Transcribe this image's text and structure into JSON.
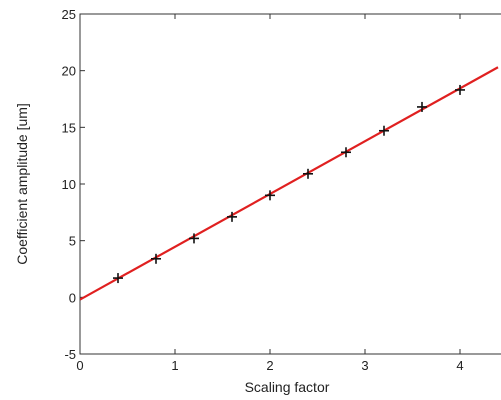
{
  "chart_data": {
    "type": "scatter",
    "title": "",
    "xlabel": "Scaling factor",
    "ylabel": "Coefficient amplitude [um]",
    "xlim": [
      0,
      4.4
    ],
    "ylim": [
      -5,
      25
    ],
    "xticks": [
      0,
      1,
      2,
      3,
      4
    ],
    "yticks": [
      -5,
      0,
      5,
      10,
      15,
      20,
      25
    ],
    "xtick_labels": [
      "0",
      "1",
      "2",
      "3",
      "4"
    ],
    "ytick_labels": [
      "-5",
      "0",
      "5",
      "10",
      "15",
      "20",
      "25"
    ],
    "grid": false,
    "legend": "none",
    "series": [
      {
        "kind": "scatter",
        "marker": "+",
        "color": "#111111",
        "x": [
          0.4,
          0.8,
          1.2,
          1.6,
          2.0,
          2.4,
          2.8,
          3.2,
          3.6,
          4.0
        ],
        "y": [
          1.7,
          3.4,
          5.2,
          7.1,
          9.0,
          10.9,
          12.8,
          14.7,
          16.8,
          18.3
        ]
      },
      {
        "kind": "line",
        "color": "#e02020",
        "x": [
          0,
          4.4
        ],
        "y": [
          -0.2,
          20.3
        ]
      }
    ]
  }
}
